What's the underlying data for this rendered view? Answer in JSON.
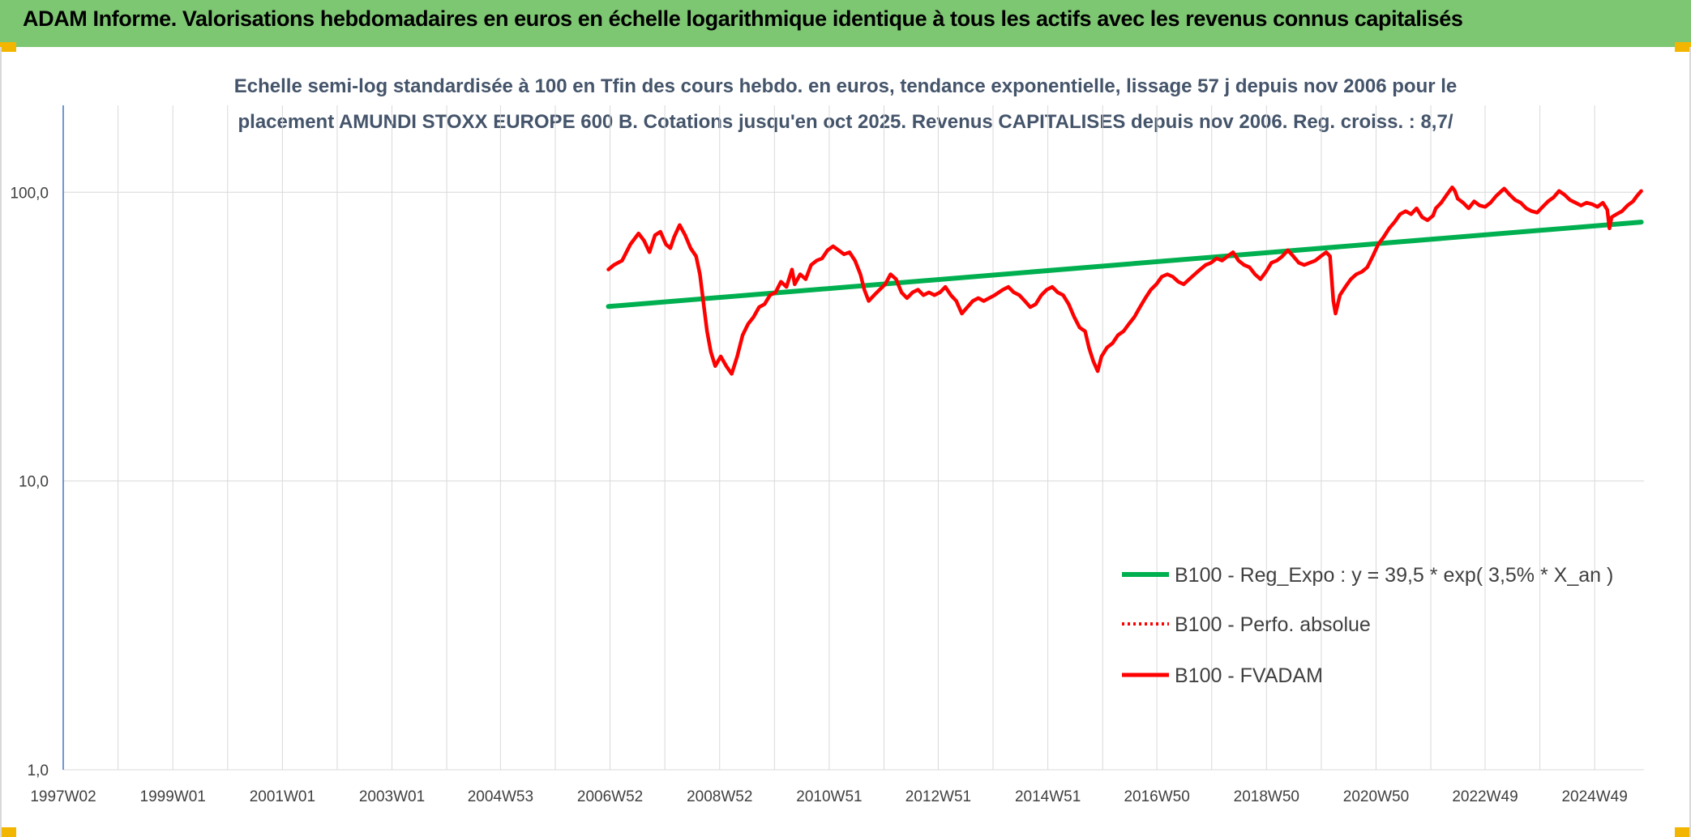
{
  "header": {
    "title": "ADAM Informe. Valorisations hebdomadaires en euros en échelle logarithmique identique à tous les actifs avec les revenus connus capitalisés"
  },
  "colors": {
    "header_bg": "#7dc672",
    "corner": "#f2b600",
    "trend": "#00b050",
    "series": "#ff0000",
    "grid": "#d9d9d9"
  },
  "chart_data": {
    "type": "line",
    "subtitle_lines": [
      "Echelle semi-log standardisée à 100 en Tfin des cours hebdo. en euros, tendance exponentielle, lissage 57 j depuis nov 2006 pour le",
      "placement AMUNDI STOXX EUROPE 600 B. Cotations jusqu'en oct 2025. Revenus CAPITALISES depuis nov 2006. Reg. croiss. : 8,7/"
    ],
    "y_scale": "log",
    "ylim": [
      1,
      200
    ],
    "y_ticks": [
      {
        "value": 1,
        "label": "1,0"
      },
      {
        "value": 10,
        "label": "10,0"
      },
      {
        "value": 100,
        "label": "100,0"
      }
    ],
    "xlim": [
      1997.0,
      2025.85
    ],
    "x_ticks": [
      {
        "value": 1997.0,
        "label": "1997W02"
      },
      {
        "value": 1999.0,
        "label": "1999W01"
      },
      {
        "value": 2001.0,
        "label": "2001W01"
      },
      {
        "value": 2003.0,
        "label": "2003W01"
      },
      {
        "value": 2004.98,
        "label": "2004W53"
      },
      {
        "value": 2006.98,
        "label": "2006W52"
      },
      {
        "value": 2008.98,
        "label": "2008W52"
      },
      {
        "value": 2010.98,
        "label": "2010W51"
      },
      {
        "value": 2012.97,
        "label": "2012W51"
      },
      {
        "value": 2014.97,
        "label": "2014W51"
      },
      {
        "value": 2016.96,
        "label": "2016W50"
      },
      {
        "value": 2018.96,
        "label": "2018W50"
      },
      {
        "value": 2020.96,
        "label": "2020W50"
      },
      {
        "value": 2022.95,
        "label": "2022W49"
      },
      {
        "value": 2024.95,
        "label": "2024W49"
      }
    ],
    "grid": true,
    "legend_position": "right",
    "series": [
      {
        "name": "B100 - Reg_Expo : y = 39,5 * exp( 3,5% *  X_an )",
        "style": "solid-thick",
        "color": "#00b050",
        "points": [
          [
            2006.95,
            40.2
          ],
          [
            2025.8,
            78.8
          ]
        ]
      },
      {
        "name": "B100 - Perfo. absolue",
        "style": "dotted",
        "color": "#ff0000",
        "points": []
      },
      {
        "name": "B100 - FVADAM",
        "style": "solid",
        "color": "#ff0000",
        "points": [
          [
            2006.95,
            54
          ],
          [
            2007.05,
            56
          ],
          [
            2007.2,
            58
          ],
          [
            2007.35,
            66
          ],
          [
            2007.5,
            72
          ],
          [
            2007.6,
            68
          ],
          [
            2007.7,
            62
          ],
          [
            2007.8,
            71
          ],
          [
            2007.9,
            73
          ],
          [
            2008.0,
            66
          ],
          [
            2008.08,
            64
          ],
          [
            2008.15,
            70
          ],
          [
            2008.25,
            77
          ],
          [
            2008.35,
            71
          ],
          [
            2008.45,
            64
          ],
          [
            2008.55,
            60
          ],
          [
            2008.62,
            52
          ],
          [
            2008.68,
            42
          ],
          [
            2008.75,
            33
          ],
          [
            2008.82,
            28
          ],
          [
            2008.9,
            25
          ],
          [
            2009.0,
            27
          ],
          [
            2009.1,
            25
          ],
          [
            2009.2,
            23.5
          ],
          [
            2009.3,
            27
          ],
          [
            2009.4,
            32
          ],
          [
            2009.5,
            35
          ],
          [
            2009.6,
            37
          ],
          [
            2009.7,
            40
          ],
          [
            2009.8,
            41
          ],
          [
            2009.9,
            44
          ],
          [
            2010.0,
            45
          ],
          [
            2010.1,
            49
          ],
          [
            2010.2,
            47
          ],
          [
            2010.3,
            54
          ],
          [
            2010.35,
            48
          ],
          [
            2010.45,
            52
          ],
          [
            2010.55,
            50
          ],
          [
            2010.65,
            56
          ],
          [
            2010.75,
            58
          ],
          [
            2010.85,
            59
          ],
          [
            2010.95,
            63
          ],
          [
            2011.05,
            65
          ],
          [
            2011.15,
            63
          ],
          [
            2011.25,
            61
          ],
          [
            2011.35,
            62
          ],
          [
            2011.45,
            58
          ],
          [
            2011.55,
            52
          ],
          [
            2011.62,
            46
          ],
          [
            2011.7,
            42
          ],
          [
            2011.8,
            44
          ],
          [
            2011.9,
            46
          ],
          [
            2012.0,
            48
          ],
          [
            2012.1,
            52
          ],
          [
            2012.2,
            50
          ],
          [
            2012.3,
            45
          ],
          [
            2012.4,
            43
          ],
          [
            2012.5,
            45
          ],
          [
            2012.6,
            46
          ],
          [
            2012.7,
            44
          ],
          [
            2012.8,
            45
          ],
          [
            2012.9,
            44
          ],
          [
            2013.0,
            45
          ],
          [
            2013.1,
            47
          ],
          [
            2013.2,
            44
          ],
          [
            2013.3,
            42
          ],
          [
            2013.4,
            38
          ],
          [
            2013.5,
            40
          ],
          [
            2013.6,
            42
          ],
          [
            2013.7,
            43
          ],
          [
            2013.8,
            42
          ],
          [
            2013.9,
            43
          ],
          [
            2014.0,
            44
          ],
          [
            2014.15,
            46
          ],
          [
            2014.25,
            47
          ],
          [
            2014.35,
            45
          ],
          [
            2014.45,
            44
          ],
          [
            2014.55,
            42
          ],
          [
            2014.65,
            40
          ],
          [
            2014.75,
            41
          ],
          [
            2014.85,
            44
          ],
          [
            2014.95,
            46
          ],
          [
            2015.05,
            47
          ],
          [
            2015.15,
            45
          ],
          [
            2015.25,
            44
          ],
          [
            2015.35,
            41
          ],
          [
            2015.45,
            37
          ],
          [
            2015.55,
            34
          ],
          [
            2015.65,
            33
          ],
          [
            2015.72,
            29
          ],
          [
            2015.8,
            26
          ],
          [
            2015.88,
            24
          ],
          [
            2015.95,
            27
          ],
          [
            2016.05,
            29
          ],
          [
            2016.15,
            30
          ],
          [
            2016.25,
            32
          ],
          [
            2016.35,
            33
          ],
          [
            2016.45,
            35
          ],
          [
            2016.55,
            37
          ],
          [
            2016.65,
            40
          ],
          [
            2016.75,
            43
          ],
          [
            2016.85,
            46
          ],
          [
            2016.95,
            48
          ],
          [
            2017.05,
            51
          ],
          [
            2017.15,
            52
          ],
          [
            2017.25,
            51
          ],
          [
            2017.35,
            49
          ],
          [
            2017.45,
            48
          ],
          [
            2017.55,
            50
          ],
          [
            2017.65,
            52
          ],
          [
            2017.75,
            54
          ],
          [
            2017.85,
            56
          ],
          [
            2017.95,
            57
          ],
          [
            2018.05,
            59
          ],
          [
            2018.15,
            58
          ],
          [
            2018.25,
            60
          ],
          [
            2018.35,
            62
          ],
          [
            2018.45,
            58
          ],
          [
            2018.55,
            56
          ],
          [
            2018.65,
            55
          ],
          [
            2018.75,
            52
          ],
          [
            2018.85,
            50
          ],
          [
            2018.95,
            53
          ],
          [
            2019.05,
            57
          ],
          [
            2019.15,
            58
          ],
          [
            2019.25,
            60
          ],
          [
            2019.35,
            63
          ],
          [
            2019.45,
            60
          ],
          [
            2019.55,
            57
          ],
          [
            2019.65,
            56
          ],
          [
            2019.75,
            57
          ],
          [
            2019.85,
            58
          ],
          [
            2019.95,
            60
          ],
          [
            2020.05,
            62
          ],
          [
            2020.12,
            60
          ],
          [
            2020.18,
            42
          ],
          [
            2020.22,
            38
          ],
          [
            2020.3,
            44
          ],
          [
            2020.4,
            47
          ],
          [
            2020.5,
            50
          ],
          [
            2020.6,
            52
          ],
          [
            2020.7,
            53
          ],
          [
            2020.8,
            55
          ],
          [
            2020.9,
            60
          ],
          [
            2021.0,
            66
          ],
          [
            2021.1,
            70
          ],
          [
            2021.2,
            75
          ],
          [
            2021.3,
            79
          ],
          [
            2021.4,
            84
          ],
          [
            2021.5,
            86
          ],
          [
            2021.6,
            84
          ],
          [
            2021.7,
            88
          ],
          [
            2021.8,
            82
          ],
          [
            2021.9,
            80
          ],
          [
            2022.0,
            83
          ],
          [
            2022.05,
            88
          ],
          [
            2022.15,
            92
          ],
          [
            2022.25,
            98
          ],
          [
            2022.35,
            104
          ],
          [
            2022.4,
            101
          ],
          [
            2022.45,
            95
          ],
          [
            2022.55,
            92
          ],
          [
            2022.65,
            88
          ],
          [
            2022.75,
            93
          ],
          [
            2022.85,
            90
          ],
          [
            2022.95,
            89
          ],
          [
            2023.05,
            92
          ],
          [
            2023.15,
            97
          ],
          [
            2023.25,
            101
          ],
          [
            2023.3,
            103
          ],
          [
            2023.4,
            98
          ],
          [
            2023.5,
            94
          ],
          [
            2023.6,
            92
          ],
          [
            2023.7,
            88
          ],
          [
            2023.8,
            86
          ],
          [
            2023.9,
            85
          ],
          [
            2024.0,
            89
          ],
          [
            2024.1,
            93
          ],
          [
            2024.2,
            96
          ],
          [
            2024.3,
            101
          ],
          [
            2024.4,
            98
          ],
          [
            2024.5,
            94
          ],
          [
            2024.6,
            92
          ],
          [
            2024.7,
            90
          ],
          [
            2024.8,
            92
          ],
          [
            2024.9,
            91
          ],
          [
            2025.0,
            89
          ],
          [
            2025.1,
            92
          ],
          [
            2025.18,
            87
          ],
          [
            2025.22,
            75
          ],
          [
            2025.26,
            82
          ],
          [
            2025.35,
            84
          ],
          [
            2025.45,
            86
          ],
          [
            2025.55,
            90
          ],
          [
            2025.65,
            93
          ],
          [
            2025.72,
            97
          ],
          [
            2025.8,
            101
          ]
        ]
      }
    ]
  }
}
